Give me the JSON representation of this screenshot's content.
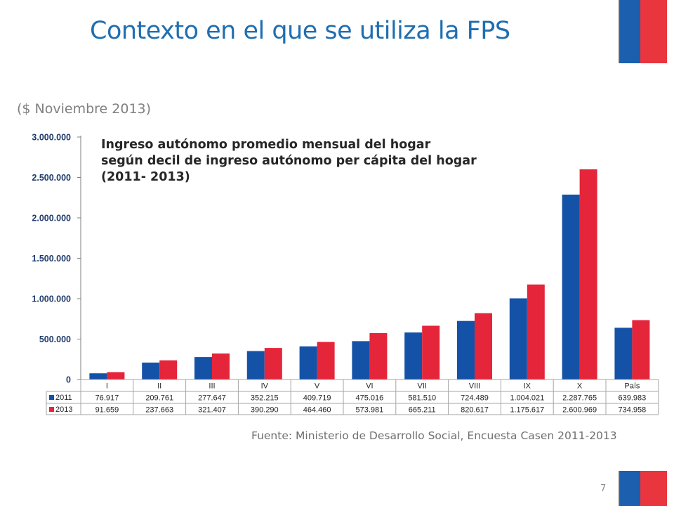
{
  "slide": {
    "title": "Contexto en el que se utiliza la FPS",
    "subtitle": "($ Noviembre 2013)",
    "source": "Fuente: Ministerio de Desarrollo Social, Encuesta Casen 2011-2013",
    "page_number": "7"
  },
  "colors": {
    "title": "#1f6eb1",
    "flag_blue": "#1b5fae",
    "flag_red": "#e8353e",
    "series_2011": "#1452a8",
    "series_2013": "#e4253a"
  },
  "chart_data": {
    "type": "bar",
    "title": "Ingreso autónomo promedio mensual del hogar según decil de ingreso autónomo per cápita del hogar (2011- 2013)",
    "title_lines": [
      "Ingreso autónomo promedio mensual del hogar",
      "según decil de ingreso autónomo per cápita del hogar",
      "(2011- 2013)"
    ],
    "categories": [
      "I",
      "II",
      "III",
      "IV",
      "V",
      "VI",
      "VII",
      "VIII",
      "IX",
      "X",
      "País"
    ],
    "series": [
      {
        "name": "2011",
        "color": "#1452a8",
        "values": [
          76917,
          209761,
          277647,
          352215,
          409719,
          475016,
          581510,
          724489,
          1004021,
          2287765,
          639983
        ],
        "labels": [
          "76.917",
          "209.761",
          "277.647",
          "352.215",
          "409.719",
          "475.016",
          "581.510",
          "724.489",
          "1.004.021",
          "2.287.765",
          "639.983"
        ]
      },
      {
        "name": "2013",
        "color": "#e4253a",
        "values": [
          91659,
          237663,
          321407,
          390290,
          464460,
          573981,
          665211,
          820617,
          1175617,
          2600969,
          734958
        ],
        "labels": [
          "91.659",
          "237.663",
          "321.407",
          "390.290",
          "464.460",
          "573.981",
          "665.211",
          "820.617",
          "1.175.617",
          "2.600.969",
          "734.958"
        ]
      }
    ],
    "ylim": [
      0,
      3000000
    ],
    "yticks": [
      0,
      500000,
      1000000,
      1500000,
      2000000,
      2500000,
      3000000
    ],
    "ytick_labels": [
      "0",
      "500.000",
      "1.000.000",
      "1.500.000",
      "2.000.000",
      "2.500.000",
      "3.000.000"
    ],
    "xlabel": "",
    "ylabel": "",
    "grid": false,
    "legend": "data-table-below"
  }
}
